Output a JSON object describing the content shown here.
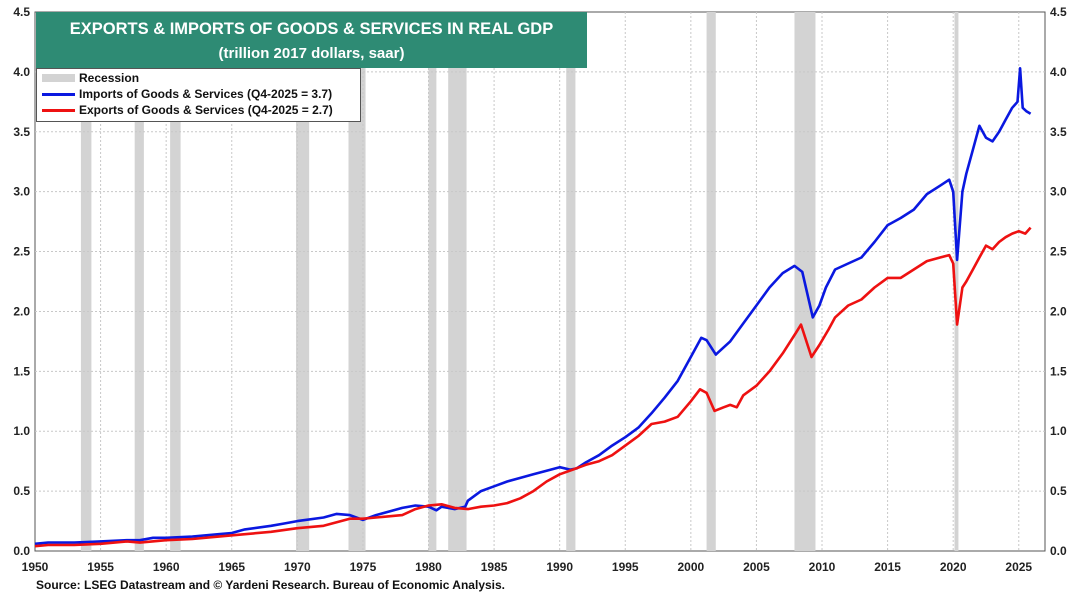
{
  "chart_data": {
    "type": "line",
    "title": "EXPORTS & IMPORTS OF GOODS & SERVICES IN REAL GDP",
    "subtitle": "(trillion 2017 dollars, saar)",
    "xlim": [
      1950,
      2027
    ],
    "ylim": [
      0,
      4.5
    ],
    "x_ticks": [
      "1950",
      "1955",
      "1960",
      "1965",
      "1970",
      "1975",
      "1980",
      "1985",
      "1990",
      "1995",
      "2000",
      "2005",
      "2010",
      "2015",
      "2020",
      "2025"
    ],
    "y_ticks": [
      "0.0",
      "0.5",
      "1.0",
      "1.5",
      "2.0",
      "2.5",
      "3.0",
      "3.5",
      "4.0",
      "4.5"
    ],
    "grid": true,
    "legend": [
      {
        "label": "Recession",
        "kind": "band",
        "color": "#d3d3d3"
      },
      {
        "label": "Imports of Goods & Services  (Q4-2025 = 3.7)",
        "kind": "line",
        "color": "#0a18e0"
      },
      {
        "label": "Exports of Goods & Services (Q4-2025 = 2.7)",
        "kind": "line",
        "color": "#ee1111"
      }
    ],
    "recessions": [
      [
        1953.5,
        1954.3
      ],
      [
        1957.6,
        1958.3
      ],
      [
        1960.3,
        1961.1
      ],
      [
        1969.9,
        1970.9
      ],
      [
        1973.9,
        1975.2
      ],
      [
        1980.0,
        1980.6
      ],
      [
        1981.5,
        1982.9
      ],
      [
        1990.5,
        1991.2
      ],
      [
        2001.2,
        2001.9
      ],
      [
        2007.9,
        2009.5
      ],
      [
        2020.1,
        2020.4
      ]
    ],
    "series": [
      {
        "name": "Imports of Goods & Services",
        "color": "#0a18e0",
        "points": [
          [
            1950,
            0.06
          ],
          [
            1951,
            0.07
          ],
          [
            1953,
            0.07
          ],
          [
            1955,
            0.08
          ],
          [
            1957,
            0.09
          ],
          [
            1958,
            0.09
          ],
          [
            1959,
            0.11
          ],
          [
            1960,
            0.11
          ],
          [
            1962,
            0.12
          ],
          [
            1964,
            0.14
          ],
          [
            1965,
            0.15
          ],
          [
            1966,
            0.18
          ],
          [
            1968,
            0.21
          ],
          [
            1969,
            0.23
          ],
          [
            1970,
            0.25
          ],
          [
            1972,
            0.28
          ],
          [
            1973,
            0.31
          ],
          [
            1974,
            0.3
          ],
          [
            1975,
            0.26
          ],
          [
            1976,
            0.3
          ],
          [
            1977,
            0.33
          ],
          [
            1978,
            0.36
          ],
          [
            1979,
            0.38
          ],
          [
            1980,
            0.37
          ],
          [
            1980.6,
            0.34
          ],
          [
            1981,
            0.37
          ],
          [
            1982,
            0.35
          ],
          [
            1982.8,
            0.37
          ],
          [
            1983,
            0.42
          ],
          [
            1984,
            0.5
          ],
          [
            1985,
            0.54
          ],
          [
            1986,
            0.58
          ],
          [
            1987,
            0.61
          ],
          [
            1988,
            0.64
          ],
          [
            1989,
            0.67
          ],
          [
            1990,
            0.7
          ],
          [
            1990.8,
            0.68
          ],
          [
            1991.3,
            0.69
          ],
          [
            1992,
            0.74
          ],
          [
            1993,
            0.8
          ],
          [
            1994,
            0.88
          ],
          [
            1995,
            0.95
          ],
          [
            1996,
            1.03
          ],
          [
            1997,
            1.15
          ],
          [
            1998,
            1.28
          ],
          [
            1999,
            1.42
          ],
          [
            2000,
            1.62
          ],
          [
            2000.8,
            1.78
          ],
          [
            2001.2,
            1.76
          ],
          [
            2001.9,
            1.64
          ],
          [
            2002.5,
            1.7
          ],
          [
            2003,
            1.75
          ],
          [
            2004,
            1.9
          ],
          [
            2005,
            2.05
          ],
          [
            2006,
            2.2
          ],
          [
            2007,
            2.32
          ],
          [
            2007.9,
            2.38
          ],
          [
            2008.5,
            2.33
          ],
          [
            2009.3,
            1.95
          ],
          [
            2009.8,
            2.05
          ],
          [
            2010.3,
            2.2
          ],
          [
            2011,
            2.35
          ],
          [
            2012,
            2.4
          ],
          [
            2013,
            2.45
          ],
          [
            2014,
            2.58
          ],
          [
            2015,
            2.72
          ],
          [
            2016,
            2.78
          ],
          [
            2017,
            2.85
          ],
          [
            2018,
            2.98
          ],
          [
            2019,
            3.05
          ],
          [
            2019.7,
            3.1
          ],
          [
            2020,
            3.0
          ],
          [
            2020.3,
            2.43
          ],
          [
            2020.7,
            3.0
          ],
          [
            2021,
            3.15
          ],
          [
            2021.5,
            3.35
          ],
          [
            2022,
            3.55
          ],
          [
            2022.5,
            3.45
          ],
          [
            2023,
            3.42
          ],
          [
            2023.5,
            3.5
          ],
          [
            2024,
            3.6
          ],
          [
            2024.5,
            3.7
          ],
          [
            2024.9,
            3.75
          ],
          [
            2025.1,
            4.03
          ],
          [
            2025.3,
            3.7
          ],
          [
            2025.6,
            3.67
          ],
          [
            2025.9,
            3.65
          ]
        ]
      },
      {
        "name": "Exports of Goods & Services",
        "color": "#ee1111",
        "points": [
          [
            1950,
            0.04
          ],
          [
            1951,
            0.05
          ],
          [
            1953,
            0.05
          ],
          [
            1955,
            0.06
          ],
          [
            1957,
            0.08
          ],
          [
            1958,
            0.07
          ],
          [
            1960,
            0.09
          ],
          [
            1962,
            0.1
          ],
          [
            1964,
            0.12
          ],
          [
            1966,
            0.14
          ],
          [
            1968,
            0.16
          ],
          [
            1970,
            0.19
          ],
          [
            1972,
            0.21
          ],
          [
            1973,
            0.24
          ],
          [
            1974,
            0.27
          ],
          [
            1975,
            0.27
          ],
          [
            1976,
            0.28
          ],
          [
            1978,
            0.3
          ],
          [
            1979,
            0.35
          ],
          [
            1980,
            0.38
          ],
          [
            1981,
            0.39
          ],
          [
            1982,
            0.36
          ],
          [
            1983,
            0.35
          ],
          [
            1984,
            0.37
          ],
          [
            1985,
            0.38
          ],
          [
            1986,
            0.4
          ],
          [
            1987,
            0.44
          ],
          [
            1988,
            0.5
          ],
          [
            1989,
            0.58
          ],
          [
            1990,
            0.64
          ],
          [
            1991,
            0.68
          ],
          [
            1992,
            0.72
          ],
          [
            1993,
            0.75
          ],
          [
            1994,
            0.8
          ],
          [
            1995,
            0.88
          ],
          [
            1996,
            0.96
          ],
          [
            1997,
            1.06
          ],
          [
            1998,
            1.08
          ],
          [
            1999,
            1.12
          ],
          [
            2000,
            1.25
          ],
          [
            2000.7,
            1.35
          ],
          [
            2001.2,
            1.32
          ],
          [
            2001.8,
            1.17
          ],
          [
            2002.5,
            1.2
          ],
          [
            2003,
            1.22
          ],
          [
            2003.5,
            1.2
          ],
          [
            2004,
            1.3
          ],
          [
            2005,
            1.38
          ],
          [
            2006,
            1.5
          ],
          [
            2007,
            1.65
          ],
          [
            2008,
            1.82
          ],
          [
            2008.4,
            1.89
          ],
          [
            2009.2,
            1.62
          ],
          [
            2009.8,
            1.72
          ],
          [
            2010.5,
            1.85
          ],
          [
            2011,
            1.95
          ],
          [
            2012,
            2.05
          ],
          [
            2013,
            2.1
          ],
          [
            2014,
            2.2
          ],
          [
            2015,
            2.28
          ],
          [
            2016,
            2.28
          ],
          [
            2017,
            2.35
          ],
          [
            2018,
            2.42
          ],
          [
            2019,
            2.45
          ],
          [
            2019.7,
            2.47
          ],
          [
            2020,
            2.4
          ],
          [
            2020.3,
            1.89
          ],
          [
            2020.7,
            2.2
          ],
          [
            2021,
            2.25
          ],
          [
            2021.5,
            2.35
          ],
          [
            2022,
            2.45
          ],
          [
            2022.5,
            2.55
          ],
          [
            2023,
            2.52
          ],
          [
            2023.5,
            2.58
          ],
          [
            2024,
            2.62
          ],
          [
            2024.5,
            2.65
          ],
          [
            2025,
            2.67
          ],
          [
            2025.5,
            2.65
          ],
          [
            2025.9,
            2.7
          ]
        ]
      }
    ]
  },
  "header": {
    "title": "EXPORTS & IMPORTS OF GOODS & SERVICES IN REAL GDP",
    "subtitle": "(trillion 2017 dollars, saar)"
  },
  "legend_labels": {
    "recession": "Recession",
    "imports": "Imports of Goods & Services  (Q4-2025 = 3.7)",
    "exports": "Exports of Goods & Services (Q4-2025 = 2.7)"
  },
  "colors": {
    "imports": "#0a18e0",
    "exports": "#ee1111",
    "recession": "#d3d3d3",
    "title_bg": "#2e8b74"
  },
  "footer": {
    "source": "Source: LSEG Datastream and © Yardeni Research. Bureau of Economic Analysis."
  }
}
